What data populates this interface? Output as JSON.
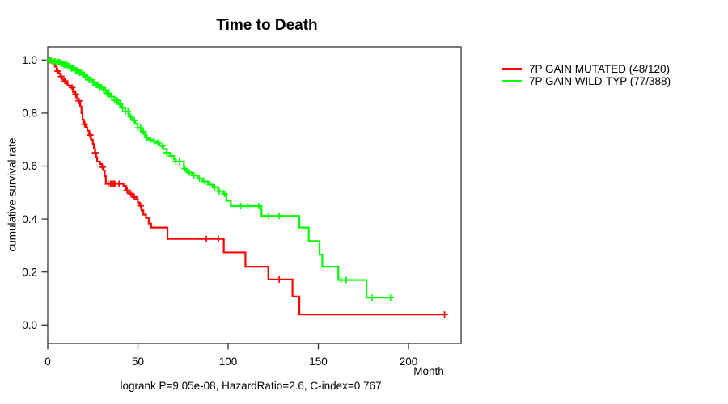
{
  "chart_data": {
    "type": "line",
    "variant": "kaplan-meier-step",
    "title": "Time to Death",
    "xlabel": "Month",
    "ylabel": "cumulative survival rate",
    "footer": "logrank P=9.05e-08, HazardRatio=2.6, C-index=0.767",
    "grid": false,
    "legend_position": "right-outside",
    "xlim": [
      0,
      229
    ],
    "ylim": [
      0.0,
      1.0
    ],
    "xticks": [
      {
        "v": 0,
        "label": "0"
      },
      {
        "v": 50,
        "label": "50"
      },
      {
        "v": 100,
        "label": "100"
      },
      {
        "v": 150,
        "label": "150"
      },
      {
        "v": 200,
        "label": "200"
      }
    ],
    "yticks": [
      {
        "v": 0.0,
        "label": "0.0"
      },
      {
        "v": 0.2,
        "label": "0.2"
      },
      {
        "v": 0.4,
        "label": "0.4"
      },
      {
        "v": 0.6,
        "label": "0.6"
      },
      {
        "v": 0.8,
        "label": "0.8"
      },
      {
        "v": 1.0,
        "label": "1.0"
      }
    ],
    "series": [
      {
        "name": "7P GAIN MUTATED",
        "label": "7P GAIN MUTATED (48/120)",
        "color": "#ff0000",
        "events_over_n": "48/120",
        "end_month": 220,
        "points": [
          [
            0,
            1.0
          ],
          [
            3,
            0.983
          ],
          [
            4,
            0.975
          ],
          [
            5,
            0.958
          ],
          [
            6,
            0.95
          ],
          [
            7,
            0.938
          ],
          [
            8,
            0.929
          ],
          [
            9,
            0.921
          ],
          [
            10,
            0.913
          ],
          [
            11,
            0.904
          ],
          [
            13,
            0.896
          ],
          [
            14,
            0.879
          ],
          [
            15,
            0.871
          ],
          [
            16,
            0.854
          ],
          [
            17,
            0.846
          ],
          [
            18,
            0.825
          ],
          [
            18.7,
            0.8
          ],
          [
            19.3,
            0.775
          ],
          [
            20,
            0.758
          ],
          [
            21,
            0.746
          ],
          [
            22,
            0.733
          ],
          [
            23,
            0.717
          ],
          [
            24,
            0.7
          ],
          [
            25,
            0.683
          ],
          [
            25.6,
            0.667
          ],
          [
            26.2,
            0.65
          ],
          [
            26.8,
            0.633
          ],
          [
            27.4,
            0.617
          ],
          [
            29,
            0.608
          ],
          [
            30,
            0.596
          ],
          [
            31,
            0.583
          ],
          [
            31.6,
            0.562
          ],
          [
            32.2,
            0.533
          ],
          [
            42,
            0.525
          ],
          [
            43.5,
            0.508
          ],
          [
            45,
            0.496
          ],
          [
            47,
            0.483
          ],
          [
            49,
            0.475
          ],
          [
            50,
            0.462
          ],
          [
            51,
            0.45
          ],
          [
            52,
            0.433
          ],
          [
            53,
            0.417
          ],
          [
            54.5,
            0.404
          ],
          [
            56,
            0.383
          ],
          [
            57.3,
            0.368
          ],
          [
            66.4,
            0.325
          ],
          [
            97.6,
            0.274
          ],
          [
            109.6,
            0.22
          ],
          [
            122.3,
            0.172
          ],
          [
            135.7,
            0.108
          ],
          [
            139.5,
            0.04
          ]
        ],
        "censor_months": [
          1.2,
          5.5,
          7.5,
          9.5,
          13.5,
          15.5,
          17.3,
          20.5,
          23.5,
          26.4,
          30.3,
          33.5,
          34.8,
          35.6,
          36.4,
          37.2,
          39.5,
          44,
          46,
          48,
          51.5,
          87.9,
          94.6,
          128.3,
          220
        ]
      },
      {
        "name": "7P GAIN WILD-TYP",
        "label": "7P GAIN WILD-TYP (77/388)",
        "color": "#00ff00",
        "events_over_n": "77/388",
        "end_month": 190,
        "points": [
          [
            0,
            1.0
          ],
          [
            1.5,
            0.997
          ],
          [
            3,
            0.995
          ],
          [
            5,
            0.992
          ],
          [
            7,
            0.987
          ],
          [
            9,
            0.982
          ],
          [
            11,
            0.977
          ],
          [
            13,
            0.969
          ],
          [
            15,
            0.961
          ],
          [
            17,
            0.953
          ],
          [
            19,
            0.945
          ],
          [
            21,
            0.935
          ],
          [
            23,
            0.925
          ],
          [
            25,
            0.916
          ],
          [
            27,
            0.906
          ],
          [
            29,
            0.896
          ],
          [
            31,
            0.886
          ],
          [
            33,
            0.874
          ],
          [
            35,
            0.862
          ],
          [
            37,
            0.848
          ],
          [
            39,
            0.834
          ],
          [
            41,
            0.82
          ],
          [
            43,
            0.806
          ],
          [
            45,
            0.787
          ],
          [
            47,
            0.772
          ],
          [
            48.5,
            0.76
          ],
          [
            50,
            0.744
          ],
          [
            52,
            0.73
          ],
          [
            54,
            0.708
          ],
          [
            56,
            0.7
          ],
          [
            58,
            0.694
          ],
          [
            60,
            0.688
          ],
          [
            62,
            0.676
          ],
          [
            64,
            0.664
          ],
          [
            66,
            0.65
          ],
          [
            68,
            0.638
          ],
          [
            70,
            0.625
          ],
          [
            71,
            0.617
          ],
          [
            75.5,
            0.59
          ],
          [
            77,
            0.576
          ],
          [
            80,
            0.565
          ],
          [
            83,
            0.553
          ],
          [
            86,
            0.542
          ],
          [
            89,
            0.53
          ],
          [
            91.5,
            0.52
          ],
          [
            94.5,
            0.505
          ],
          [
            97.5,
            0.495
          ],
          [
            99,
            0.469
          ],
          [
            101.5,
            0.449
          ],
          [
            118.5,
            0.412
          ],
          [
            139.5,
            0.368
          ],
          [
            144.7,
            0.317
          ],
          [
            150.7,
            0.266
          ],
          [
            152.2,
            0.22
          ],
          [
            161.1,
            0.17
          ],
          [
            176.7,
            0.104
          ]
        ],
        "censor_months": [
          1,
          2,
          3,
          4,
          5,
          5.8,
          6.6,
          7.4,
          8.2,
          9,
          9.8,
          10.6,
          11.4,
          12.2,
          13,
          13.8,
          14.6,
          15.4,
          16.2,
          17,
          17.8,
          18.6,
          19.4,
          20.2,
          21,
          22,
          23,
          24,
          25,
          26,
          27,
          28,
          29,
          30,
          31,
          32,
          33,
          34,
          35.5,
          37,
          38.5,
          40,
          41.5,
          43,
          44.5,
          46,
          48,
          50,
          51.5,
          53,
          55,
          57,
          59,
          61,
          63.5,
          66,
          68.5,
          71,
          73,
          76,
          78.5,
          81,
          84,
          87,
          90,
          92.5,
          95,
          98,
          107,
          111,
          117,
          122.3,
          128.3,
          162.6,
          165.4,
          179.8,
          190
        ]
      }
    ],
    "colors": {
      "axis": "#333333",
      "text": "#000000",
      "background": "#ffffff"
    }
  }
}
